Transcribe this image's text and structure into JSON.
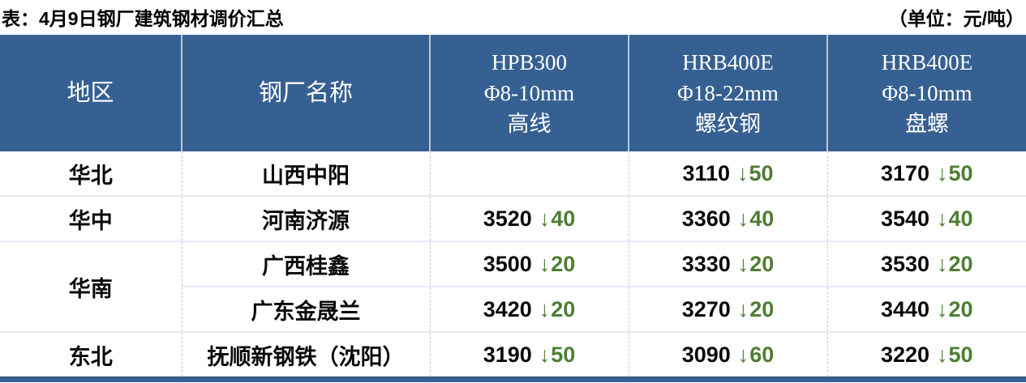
{
  "page": {
    "title": "表：4月9日钢厂建筑钢材调价汇总",
    "unit_note": "（单位：元/吨）"
  },
  "colors": {
    "header_bg": "#366092",
    "header_text": "#ffffff",
    "price_text": "#000000",
    "decrease_green": "#4e7e32",
    "bottom_bar": "#366092"
  },
  "table": {
    "columns": [
      {
        "id": "region",
        "lines": [
          "地区"
        ]
      },
      {
        "id": "factory",
        "lines": [
          "钢厂名称"
        ]
      },
      {
        "id": "hpb300_wire",
        "lines": [
          "HPB300",
          "Φ8-10mm",
          "高线"
        ]
      },
      {
        "id": "hrb400e_rebar",
        "lines": [
          "HRB400E",
          "Φ18-22mm",
          "螺纹钢"
        ]
      },
      {
        "id": "hrb400e_coil",
        "lines": [
          "HRB400E",
          "Φ8-10mm",
          "盘螺"
        ]
      }
    ],
    "rows": [
      {
        "region": "华北",
        "factory": "山西中阳",
        "cells": [
          {
            "value": "",
            "direction": "",
            "change": ""
          },
          {
            "value": "3110",
            "direction": "↓",
            "change": "50"
          },
          {
            "value": "3170",
            "direction": "↓",
            "change": "50"
          }
        ]
      },
      {
        "region": "华中",
        "factory": "河南济源",
        "cells": [
          {
            "value": "3520",
            "direction": "↓",
            "change": "40"
          },
          {
            "value": "3360",
            "direction": "↓",
            "change": "40"
          },
          {
            "value": "3540",
            "direction": "↓",
            "change": "40"
          }
        ]
      },
      {
        "region": "华南",
        "factory": "广西桂鑫",
        "cells": [
          {
            "value": "3500",
            "direction": "↓",
            "change": "20"
          },
          {
            "value": "3330",
            "direction": "↓",
            "change": "20"
          },
          {
            "value": "3530",
            "direction": "↓",
            "change": "20"
          }
        ]
      },
      {
        "factory": "广东金晟兰",
        "cells": [
          {
            "value": "3420",
            "direction": "↓",
            "change": "20"
          },
          {
            "value": "3270",
            "direction": "↓",
            "change": "20"
          },
          {
            "value": "3440",
            "direction": "↓",
            "change": "20"
          }
        ]
      },
      {
        "region": "东北",
        "factory": "抚顺新钢铁（沈阳）",
        "cells": [
          {
            "value": "3190",
            "direction": "↓",
            "change": "50"
          },
          {
            "value": "3090",
            "direction": "↓",
            "change": "60"
          },
          {
            "value": "3220",
            "direction": "↓",
            "change": "50"
          }
        ]
      }
    ]
  },
  "chart_data": {
    "type": "table",
    "title": "表：4月9日钢厂建筑钢材调价汇总",
    "unit": "元/吨",
    "columns": [
      "地区",
      "钢厂名称",
      "HPB300 Φ8-10mm 高线",
      "HRB400E Φ18-22mm 螺纹钢",
      "HRB400E Φ8-10mm 盘螺"
    ],
    "rows": [
      [
        "华北",
        "山西中阳",
        "",
        "3110 ↓50",
        "3170 ↓50"
      ],
      [
        "华中",
        "河南济源",
        "3520 ↓40",
        "3360 ↓40",
        "3540 ↓40"
      ],
      [
        "华南",
        "广西桂鑫",
        "3500 ↓20",
        "3330 ↓20",
        "3530 ↓20"
      ],
      [
        "华南",
        "广东金晟兰",
        "3420 ↓20",
        "3270 ↓20",
        "3440 ↓20"
      ],
      [
        "东北",
        "抚顺新钢铁（沈阳）",
        "3190 ↓50",
        "3090 ↓60",
        "3220 ↓50"
      ]
    ]
  }
}
